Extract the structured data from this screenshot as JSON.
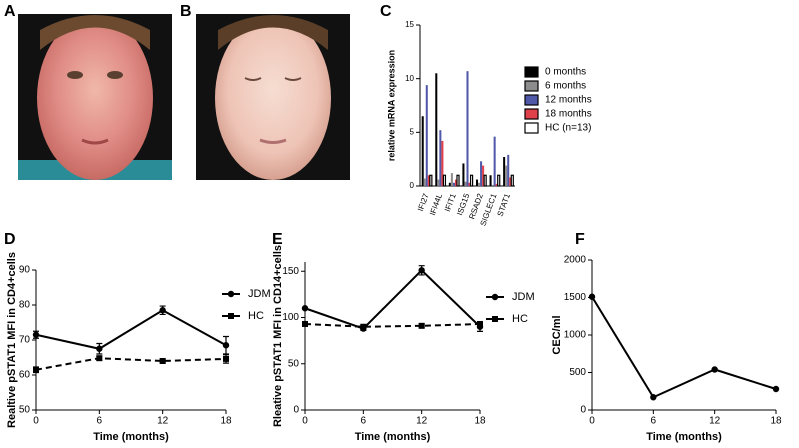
{
  "photos": [
    {
      "label": "A"
    },
    {
      "label": "B"
    }
  ],
  "chart_data": [
    {
      "type": "bar",
      "label": "C",
      "y_label": "relative mRNA expression",
      "categories": [
        "IFI27",
        "IFI44L",
        "IFIT1",
        "ISG15",
        "RSAD2",
        "SIGLEC1",
        "STAT1"
      ],
      "ylim": [
        0,
        15
      ],
      "yticks": [
        0,
        5,
        10,
        15
      ],
      "legend": "right",
      "series": [
        {
          "name": "0 months",
          "color": "#000000",
          "values": [
            6.5,
            10.5,
            0.3,
            2.1,
            0.6,
            1.0,
            2.7
          ]
        },
        {
          "name": "6 months",
          "color": "#8c8c8c",
          "values": [
            0.7,
            0.6,
            1.2,
            0.4,
            0.3,
            0.1,
            1.9
          ]
        },
        {
          "name": "12 months",
          "color": "#5058a8",
          "values": [
            9.4,
            5.2,
            0.3,
            10.7,
            2.3,
            4.6,
            2.9
          ]
        },
        {
          "name": "18 months",
          "color": "#e0404a",
          "values": [
            1.0,
            4.2,
            0.6,
            0.3,
            1.9,
            0.2,
            0.8
          ]
        },
        {
          "name": "HC (n=13)",
          "color": "#ffffff",
          "values": [
            1.0,
            1.0,
            1.0,
            1.0,
            1.0,
            1.0,
            1.0
          ]
        }
      ]
    },
    {
      "type": "line",
      "label": "D",
      "y_label": "Realtive pSTAT1 MFI in CD4+cells",
      "x_label": "Time (months)",
      "x": [
        0,
        6,
        12,
        18
      ],
      "xlim": [
        0,
        18
      ],
      "xticks": [
        0,
        6,
        12,
        18
      ],
      "ylim": [
        50,
        90
      ],
      "yticks": [
        50,
        60,
        70,
        80,
        90
      ],
      "legend": "right",
      "series": [
        {
          "name": "JDM",
          "color": "#000000",
          "marker": "circle",
          "dashed": false,
          "values": [
            71.5,
            67.5,
            78.5,
            68.5
          ],
          "errors": [
            1.0,
            1.5,
            1.2,
            2.5
          ]
        },
        {
          "name": "HC",
          "color": "#000000",
          "marker": "square",
          "dashed": true,
          "values": [
            61.5,
            64.8,
            64.0,
            64.6
          ],
          "errors": [
            0.8,
            0.6,
            0.5,
            1.2
          ]
        }
      ]
    },
    {
      "type": "line",
      "label": "E",
      "y_label": "Rleative pSTAT1 MFI in CD14+cells",
      "x_label": "Time (months)",
      "x": [
        0,
        6,
        12,
        18
      ],
      "xlim": [
        0,
        18
      ],
      "xticks": [
        0,
        6,
        12,
        18
      ],
      "ylim": [
        0,
        160
      ],
      "yticks": [
        0,
        50,
        100,
        150
      ],
      "legend": "right",
      "series": [
        {
          "name": "JDM",
          "color": "#000000",
          "marker": "circle",
          "dashed": false,
          "values": [
            110,
            88,
            151,
            90
          ],
          "errors": [
            0,
            2,
            5,
            5
          ]
        },
        {
          "name": "HC",
          "color": "#000000",
          "marker": "square",
          "dashed": true,
          "values": [
            93,
            90,
            91,
            93
          ],
          "errors": [
            2,
            2,
            2,
            2
          ]
        }
      ]
    },
    {
      "type": "line",
      "label": "F",
      "y_label": "CEC/ml",
      "x_label": "Time (months)",
      "x": [
        0,
        6,
        12,
        18
      ],
      "xlim": [
        0,
        18
      ],
      "xticks": [
        0,
        6,
        12,
        18
      ],
      "ylim": [
        0,
        2000
      ],
      "yticks": [
        0,
        500,
        1000,
        1500,
        2000
      ],
      "series": [
        {
          "color": "#000000",
          "marker": "circle",
          "dashed": false,
          "values": [
            1510,
            170,
            540,
            280
          ]
        }
      ]
    }
  ]
}
